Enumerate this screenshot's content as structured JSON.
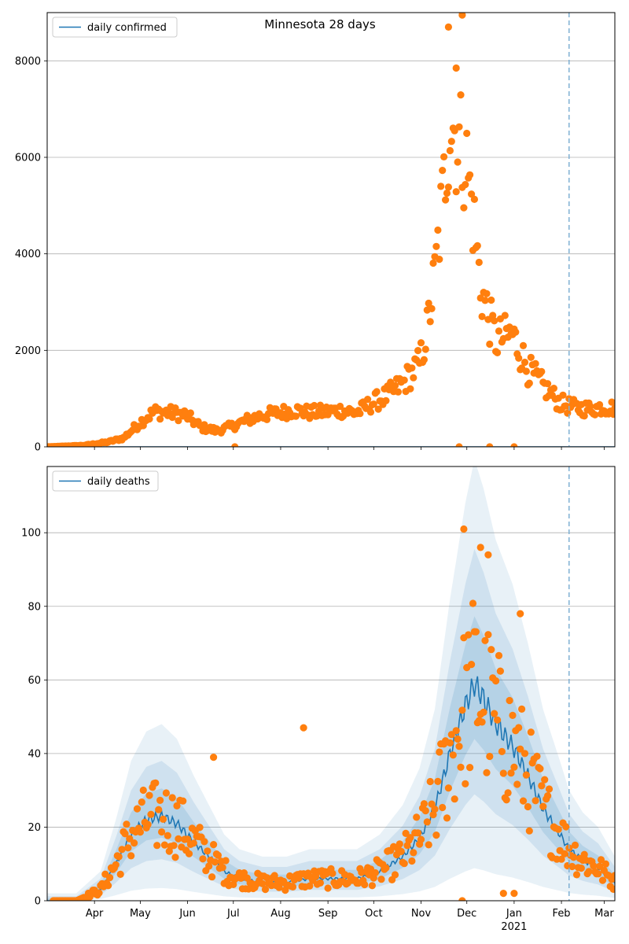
{
  "chart_data": [
    {
      "type": "scatter",
      "title": "Minnesota 28 days",
      "legend": {
        "label": "daily confirmed",
        "placement": "top-left"
      },
      "xlim": [
        "2020-03-01",
        "2021-03-08"
      ],
      "ylim": [
        0,
        9000
      ],
      "yticks": [
        0,
        2000,
        4000,
        6000,
        8000
      ],
      "grid": "y",
      "forecast_start": "2021-02-06",
      "colors": {
        "points": "#ff7f0e",
        "line": "#1f77b4",
        "vline": "#7fb0d4"
      },
      "observed_keypoints": [
        [
          "2020-03-01",
          0
        ],
        [
          "2020-03-25",
          30
        ],
        [
          "2020-04-10",
          100
        ],
        [
          "2020-04-20",
          180
        ],
        [
          "2020-05-01",
          500
        ],
        [
          "2020-05-10",
          720
        ],
        [
          "2020-05-20",
          700
        ],
        [
          "2020-05-31",
          650
        ],
        [
          "2020-06-10",
          400
        ],
        [
          "2020-06-20",
          330
        ],
        [
          "2020-06-30",
          420
        ],
        [
          "2020-07-10",
          550
        ],
        [
          "2020-07-20",
          650
        ],
        [
          "2020-07-31",
          700
        ],
        [
          "2020-08-10",
          750
        ],
        [
          "2020-08-20",
          700
        ],
        [
          "2020-08-31",
          720
        ],
        [
          "2020-09-10",
          750
        ],
        [
          "2020-09-20",
          700
        ],
        [
          "2020-09-30",
          900
        ],
        [
          "2020-10-10",
          1050
        ],
        [
          "2020-10-20",
          1300
        ],
        [
          "2020-10-31",
          1700
        ],
        [
          "2020-11-05",
          2400
        ],
        [
          "2020-11-10",
          3500
        ],
        [
          "2020-11-15",
          5000
        ],
        [
          "2020-11-20",
          6800
        ],
        [
          "2020-11-25",
          6300
        ],
        [
          "2020-11-30",
          6000
        ],
        [
          "2020-12-05",
          4800
        ],
        [
          "2020-12-10",
          3300
        ],
        [
          "2020-12-15",
          2700
        ],
        [
          "2020-12-20",
          2200
        ],
        [
          "2020-12-31",
          2300
        ],
        [
          "2021-01-10",
          1600
        ],
        [
          "2021-01-20",
          1250
        ],
        [
          "2021-01-31",
          900
        ],
        [
          "2021-02-10",
          800
        ],
        [
          "2021-02-20",
          780
        ],
        [
          "2021-02-28",
          820
        ],
        [
          "2021-03-07",
          800
        ]
      ],
      "outliers": [
        [
          "2020-11-19",
          8700
        ],
        [
          "2020-11-27",
          9050
        ],
        [
          "2020-11-28",
          8950
        ],
        [
          "2020-11-24",
          7850
        ],
        [
          "2020-11-26",
          0
        ],
        [
          "2020-12-16",
          0
        ],
        [
          "2021-01-01",
          0
        ],
        [
          "2020-07-02",
          0
        ]
      ]
    },
    {
      "type": "scatter",
      "title": "",
      "legend": {
        "label": "daily deaths",
        "placement": "top-left"
      },
      "xlim": [
        "2020-03-01",
        "2021-03-08"
      ],
      "ylim": [
        0,
        118
      ],
      "yticks": [
        0,
        20,
        40,
        60,
        80,
        100
      ],
      "grid": "y",
      "forecast_start": "2021-02-06",
      "colors": {
        "points": "#ff7f0e",
        "line": "#1f77b4",
        "band": "#1f77b4",
        "vline": "#7fb0d4"
      },
      "xtick_labels": [
        "Apr",
        "May",
        "Jun",
        "Jul",
        "Aug",
        "Sep",
        "Oct",
        "Nov",
        "Dec",
        "Jan",
        "Feb",
        "Mar"
      ],
      "xtick_dates": [
        "2020-04-01",
        "2020-05-01",
        "2020-06-01",
        "2020-07-01",
        "2020-08-01",
        "2020-09-01",
        "2020-10-01",
        "2020-11-01",
        "2020-12-01",
        "2021-01-01",
        "2021-02-01",
        "2021-03-01"
      ],
      "year_label": {
        "text": "2021",
        "date": "2021-01-01"
      },
      "mean_keypoints": [
        [
          "2020-03-01",
          0
        ],
        [
          "2020-03-20",
          0
        ],
        [
          "2020-04-05",
          3
        ],
        [
          "2020-04-15",
          10
        ],
        [
          "2020-04-25",
          18
        ],
        [
          "2020-05-05",
          22
        ],
        [
          "2020-05-15",
          23
        ],
        [
          "2020-05-25",
          21
        ],
        [
          "2020-06-05",
          16
        ],
        [
          "2020-06-15",
          12
        ],
        [
          "2020-06-25",
          8
        ],
        [
          "2020-07-05",
          6
        ],
        [
          "2020-07-20",
          5
        ],
        [
          "2020-08-05",
          5
        ],
        [
          "2020-08-20",
          6
        ],
        [
          "2020-09-05",
          6
        ],
        [
          "2020-09-20",
          6
        ],
        [
          "2020-10-05",
          8
        ],
        [
          "2020-10-20",
          12
        ],
        [
          "2020-10-31",
          17
        ],
        [
          "2020-11-10",
          25
        ],
        [
          "2020-11-20",
          40
        ],
        [
          "2020-11-30",
          53
        ],
        [
          "2020-12-06",
          59
        ],
        [
          "2020-12-12",
          55
        ],
        [
          "2020-12-20",
          48
        ],
        [
          "2020-12-31",
          42
        ],
        [
          "2021-01-10",
          34
        ],
        [
          "2021-01-20",
          25
        ],
        [
          "2021-01-31",
          18
        ],
        [
          "2021-02-06",
          14
        ],
        [
          "2021-02-15",
          11
        ],
        [
          "2021-02-25",
          9
        ],
        [
          "2021-03-08",
          5
        ]
      ],
      "outliers": [
        [
          "2020-08-16",
          47
        ],
        [
          "2020-11-28",
          0
        ],
        [
          "2020-12-25",
          2
        ],
        [
          "2021-01-01",
          2
        ],
        [
          "2020-11-29",
          101
        ],
        [
          "2020-12-10",
          96
        ],
        [
          "2020-12-15",
          94
        ],
        [
          "2021-01-05",
          78
        ],
        [
          "2020-06-18",
          39
        ]
      ]
    }
  ]
}
